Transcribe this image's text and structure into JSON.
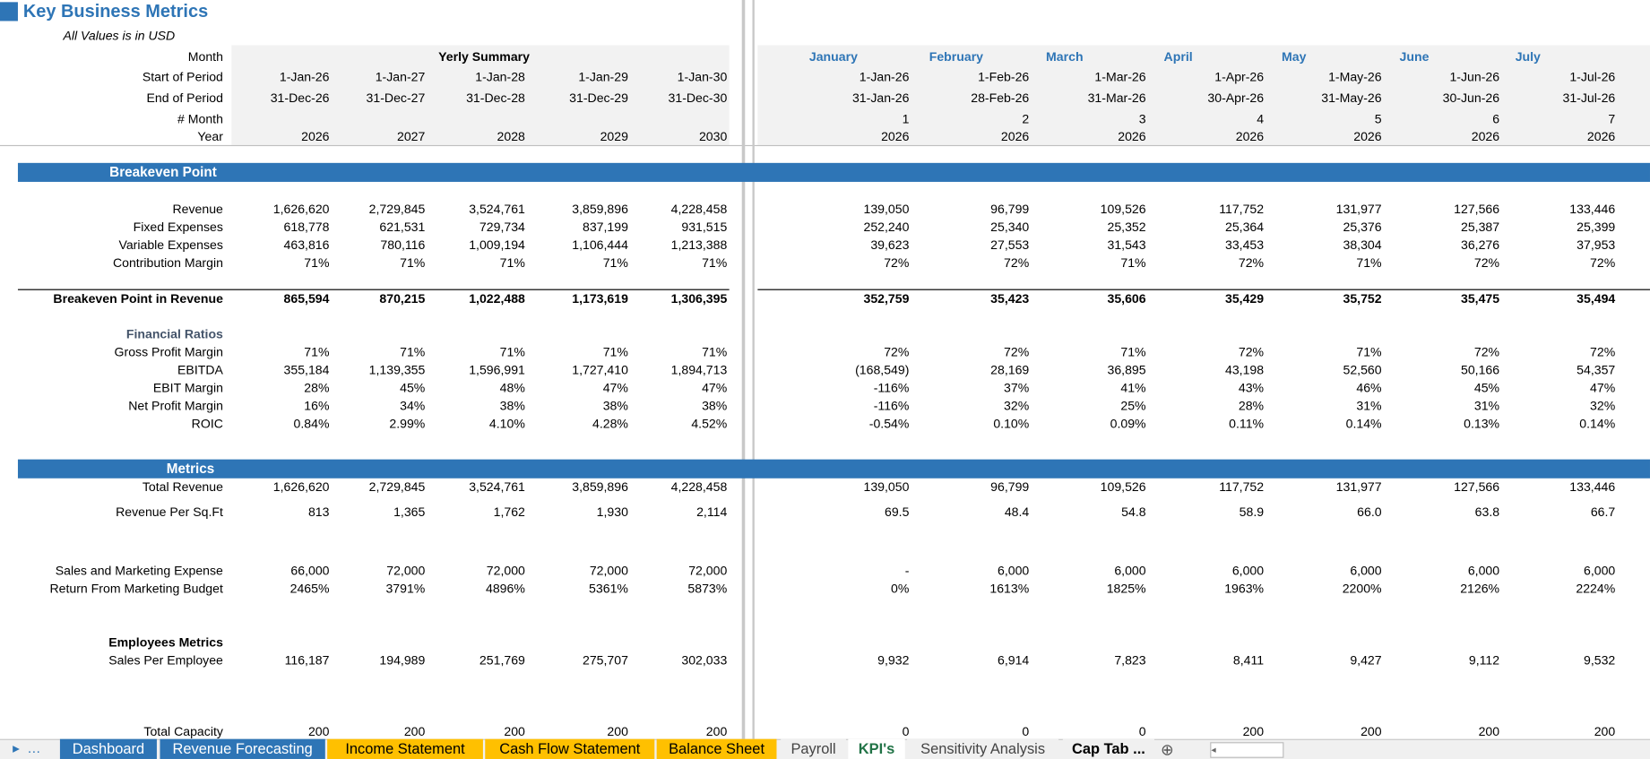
{
  "header": {
    "title": "Key Business Metrics",
    "subtitle": "All Values is in USD"
  },
  "month_label": "Month",
  "yearly_summary": "Yerly Summary",
  "months": [
    "January",
    "February",
    "March",
    "April",
    "May",
    "June",
    "July"
  ],
  "header_rows": [
    {
      "label": "Start of Period",
      "yearly": [
        "1-Jan-26",
        "1-Jan-27",
        "1-Jan-28",
        "1-Jan-29",
        "1-Jan-30"
      ],
      "monthly": [
        "1-Jan-26",
        "1-Feb-26",
        "1-Mar-26",
        "1-Apr-26",
        "1-May-26",
        "1-Jun-26",
        "1-Jul-26"
      ]
    },
    {
      "label": "End of Period",
      "yearly": [
        "31-Dec-26",
        "31-Dec-27",
        "31-Dec-28",
        "31-Dec-29",
        "31-Dec-30"
      ],
      "monthly": [
        "31-Jan-26",
        "28-Feb-26",
        "31-Mar-26",
        "30-Apr-26",
        "31-May-26",
        "30-Jun-26",
        "31-Jul-26"
      ]
    },
    {
      "label": "# Month",
      "monthly": [
        "1",
        "2",
        "3",
        "4",
        "5",
        "6",
        "7"
      ]
    },
    {
      "label": "Year",
      "yearly": [
        "2026",
        "2027",
        "2028",
        "2029",
        "2030"
      ],
      "monthly": [
        "2026",
        "2026",
        "2026",
        "2026",
        "2026",
        "2026",
        "2026"
      ]
    }
  ],
  "breakeven": {
    "title": "Breakeven Point",
    "rows": [
      {
        "label": "Revenue",
        "yearly": [
          "1,626,620",
          "2,729,845",
          "3,524,761",
          "3,859,896",
          "4,228,458"
        ],
        "monthly": [
          "139,050",
          "96,799",
          "109,526",
          "117,752",
          "131,977",
          "127,566",
          "133,446"
        ]
      },
      {
        "label": "Fixed Expenses",
        "yearly": [
          "618,778",
          "621,531",
          "729,734",
          "837,199",
          "931,515"
        ],
        "monthly": [
          "252,240",
          "25,340",
          "25,352",
          "25,364",
          "25,376",
          "25,387",
          "25,399"
        ]
      },
      {
        "label": "Variable Expenses",
        "yearly": [
          "463,816",
          "780,116",
          "1,009,194",
          "1,106,444",
          "1,213,388"
        ],
        "monthly": [
          "39,623",
          "27,553",
          "31,543",
          "33,453",
          "38,304",
          "36,276",
          "37,953"
        ]
      },
      {
        "label": "Contribution Margin",
        "yearly": [
          "71%",
          "71%",
          "71%",
          "71%",
          "71%"
        ],
        "monthly": [
          "72%",
          "72%",
          "71%",
          "72%",
          "71%",
          "72%",
          "72%"
        ]
      }
    ],
    "total": {
      "label": "Breakeven Point in Revenue",
      "yearly": [
        "865,594",
        "870,215",
        "1,022,488",
        "1,173,619",
        "1,306,395"
      ],
      "monthly": [
        "352,759",
        "35,423",
        "35,606",
        "35,429",
        "35,752",
        "35,475",
        "35,494"
      ]
    }
  },
  "financial_ratios": {
    "title": "Financial Ratios",
    "rows": [
      {
        "label": "Gross Profit Margin",
        "yearly": [
          "71%",
          "71%",
          "71%",
          "71%",
          "71%"
        ],
        "monthly": [
          "72%",
          "72%",
          "71%",
          "72%",
          "71%",
          "72%",
          "72%"
        ]
      },
      {
        "label": "EBITDA",
        "yearly": [
          "355,184",
          "1,139,355",
          "1,596,991",
          "1,727,410",
          "1,894,713"
        ],
        "monthly": [
          "(168,549)",
          "28,169",
          "36,895",
          "43,198",
          "52,560",
          "50,166",
          "54,357"
        ]
      },
      {
        "label": "EBIT Margin",
        "yearly": [
          "28%",
          "45%",
          "48%",
          "47%",
          "47%"
        ],
        "monthly": [
          "-116%",
          "37%",
          "41%",
          "43%",
          "46%",
          "45%",
          "47%"
        ]
      },
      {
        "label": "Net Profit Margin",
        "yearly": [
          "16%",
          "34%",
          "38%",
          "38%",
          "38%"
        ],
        "monthly": [
          "-116%",
          "32%",
          "25%",
          "28%",
          "31%",
          "31%",
          "32%"
        ]
      },
      {
        "label": "ROIC",
        "yearly": [
          "0.84%",
          "2.99%",
          "4.10%",
          "4.28%",
          "4.52%"
        ],
        "monthly": [
          "-0.54%",
          "0.10%",
          "0.09%",
          "0.11%",
          "0.14%",
          "0.13%",
          "0.14%"
        ]
      }
    ]
  },
  "metrics": {
    "title": "Metrics",
    "rows": [
      {
        "label": "Total Revenue",
        "yearly": [
          "1,626,620",
          "2,729,845",
          "3,524,761",
          "3,859,896",
          "4,228,458"
        ],
        "monthly": [
          "139,050",
          "96,799",
          "109,526",
          "117,752",
          "131,977",
          "127,566",
          "133,446"
        ]
      },
      {
        "label": "Revenue Per Sq.Ft",
        "yearly": [
          "813",
          "1,365",
          "1,762",
          "1,930",
          "2,114"
        ],
        "monthly": [
          "69.5",
          "48.4",
          "54.8",
          "58.9",
          "66.0",
          "63.8",
          "66.7"
        ]
      },
      {
        "label": "Sales and Marketing Expense",
        "yearly": [
          "66,000",
          "72,000",
          "72,000",
          "72,000",
          "72,000"
        ],
        "monthly": [
          "-",
          "6,000",
          "6,000",
          "6,000",
          "6,000",
          "6,000",
          "6,000"
        ]
      },
      {
        "label": "Return From Marketing Budget",
        "yearly": [
          "2465%",
          "3791%",
          "4896%",
          "5361%",
          "5873%"
        ],
        "monthly": [
          "0%",
          "1613%",
          "1825%",
          "1963%",
          "2200%",
          "2126%",
          "2224%"
        ]
      }
    ]
  },
  "employees": {
    "title": "Employees Metrics",
    "rows": [
      {
        "label": "Sales Per Employee",
        "yearly": [
          "116,187",
          "194,989",
          "251,769",
          "275,707",
          "302,033"
        ],
        "monthly": [
          "9,932",
          "6,914",
          "7,823",
          "8,411",
          "9,427",
          "9,112",
          "9,532"
        ]
      },
      {
        "label": "Total Capacity",
        "yearly": [
          "200",
          "200",
          "200",
          "200",
          "200"
        ],
        "monthly": [
          "0",
          "0",
          "0",
          "200",
          "200",
          "200",
          "200"
        ]
      }
    ]
  },
  "tabs": [
    "Dashboard",
    "Revenue Forecasting",
    "Income Statement",
    "Cash Flow Statement",
    "Balance Sheet",
    "Payroll",
    "KPI's",
    "Sensitivity Analysis",
    "Cap Tab ..."
  ]
}
